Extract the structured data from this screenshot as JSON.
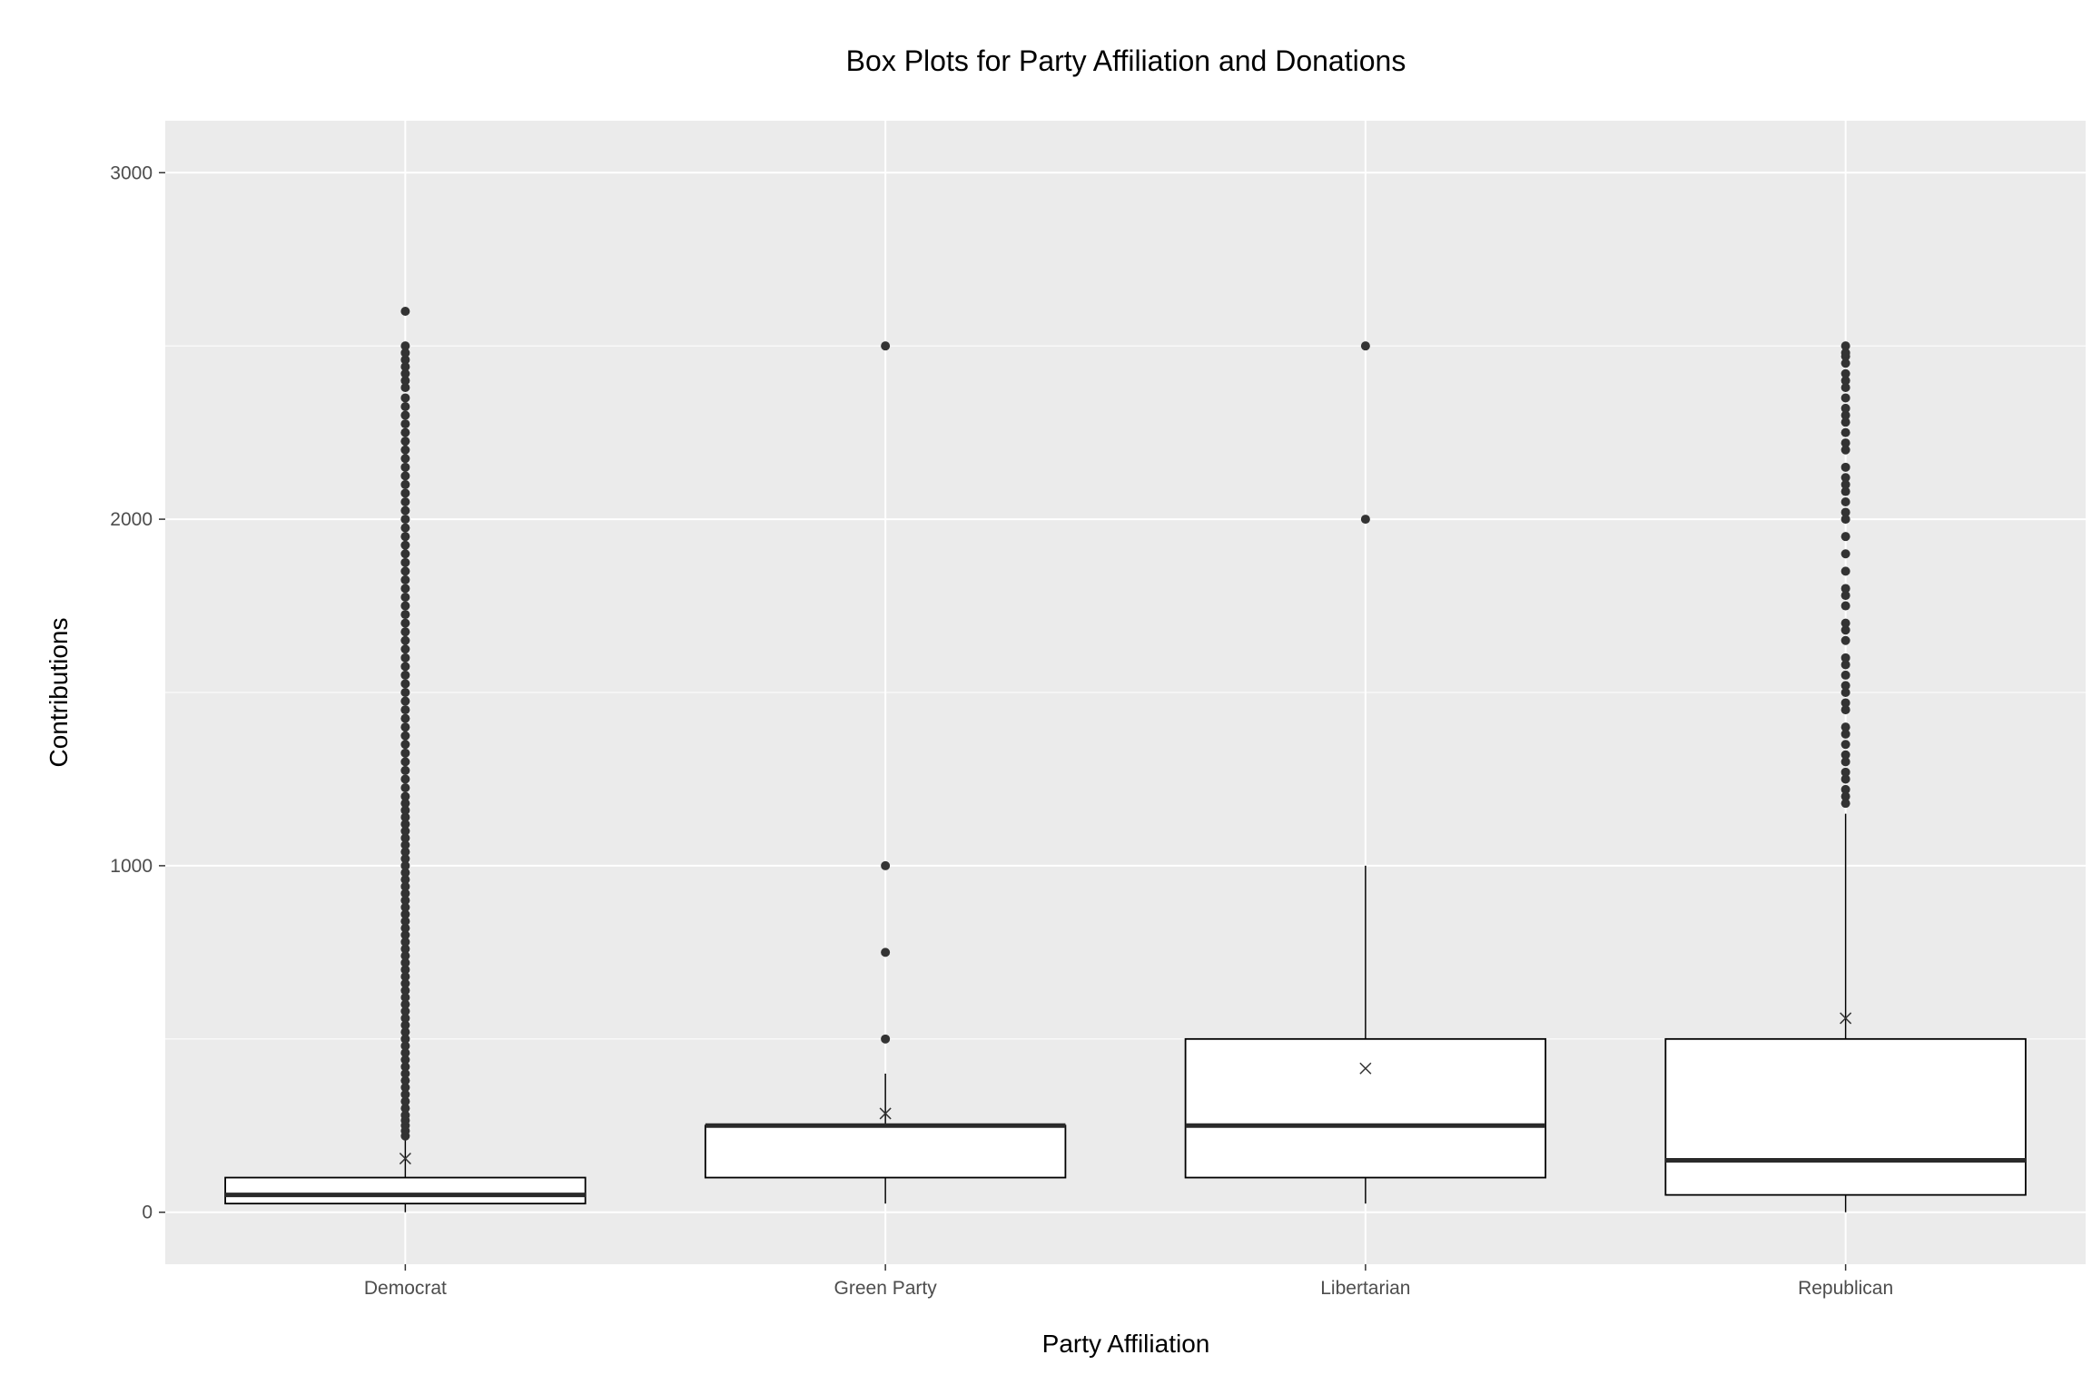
{
  "chart_data": {
    "type": "box",
    "title": "Box Plots for Party Affiliation and Donations",
    "xlabel": "Party Affiliation",
    "ylabel": "Contributions",
    "ylim": [
      -150,
      3150
    ],
    "yticks": [
      0,
      1000,
      2000,
      3000
    ],
    "grid": true,
    "categories": [
      "Democrat",
      "Green Party",
      "Libertarian",
      "Republican"
    ],
    "boxes": [
      {
        "category": "Democrat",
        "whisker_low": 0,
        "q1": 25,
        "median": 50,
        "q3": 100,
        "whisker_high": 210,
        "mean": 155,
        "outliers": [
          220,
          235,
          250,
          265,
          280,
          300,
          320,
          340,
          360,
          380,
          400,
          420,
          440,
          460,
          480,
          500,
          520,
          540,
          560,
          580,
          600,
          620,
          640,
          660,
          680,
          700,
          720,
          740,
          760,
          780,
          800,
          820,
          840,
          860,
          880,
          900,
          920,
          940,
          960,
          980,
          1000,
          1020,
          1040,
          1060,
          1080,
          1100,
          1120,
          1140,
          1160,
          1180,
          1200,
          1225,
          1250,
          1275,
          1300,
          1325,
          1350,
          1375,
          1400,
          1425,
          1450,
          1475,
          1500,
          1525,
          1550,
          1575,
          1600,
          1625,
          1650,
          1675,
          1700,
          1725,
          1750,
          1775,
          1800,
          1825,
          1850,
          1875,
          1900,
          1925,
          1950,
          1975,
          2000,
          2025,
          2050,
          2075,
          2100,
          2125,
          2150,
          2175,
          2200,
          2225,
          2250,
          2275,
          2300,
          2325,
          2350,
          2380,
          2400,
          2420,
          2440,
          2460,
          2480,
          2500,
          2600
        ]
      },
      {
        "category": "Green Party",
        "whisker_low": 25,
        "q1": 100,
        "median": 250,
        "q3": 250,
        "whisker_high": 400,
        "mean": 285,
        "outliers": [
          500,
          750,
          1000,
          2500
        ]
      },
      {
        "category": "Libertarian",
        "whisker_low": 25,
        "q1": 100,
        "median": 250,
        "q3": 500,
        "whisker_high": 1000,
        "mean": 415,
        "outliers": [
          2000,
          2500
        ]
      },
      {
        "category": "Republican",
        "whisker_low": 0,
        "q1": 50,
        "median": 150,
        "q3": 500,
        "whisker_high": 1150,
        "mean": 560,
        "outliers": [
          1180,
          1200,
          1220,
          1250,
          1270,
          1300,
          1320,
          1350,
          1380,
          1400,
          1450,
          1470,
          1500,
          1520,
          1550,
          1580,
          1600,
          1650,
          1680,
          1700,
          1750,
          1780,
          1800,
          1850,
          1900,
          1950,
          2000,
          2020,
          2050,
          2080,
          2100,
          2120,
          2150,
          2200,
          2220,
          2250,
          2280,
          2300,
          2320,
          2350,
          2380,
          2400,
          2420,
          2450,
          2470,
          2480,
          2500
        ]
      }
    ]
  }
}
